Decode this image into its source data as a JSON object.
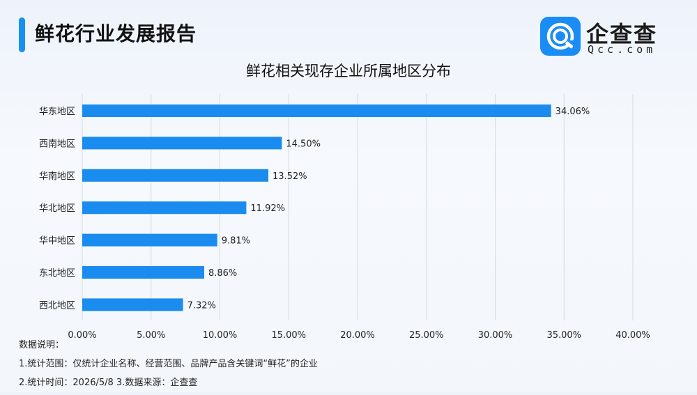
{
  "header": {
    "title": "鲜花行业发展报告"
  },
  "logo": {
    "name_cn": "企查查",
    "name_en": "Qcc.com"
  },
  "chart_data": {
    "type": "bar",
    "orientation": "horizontal",
    "title": "鲜花相关现存企业所属地区分布",
    "categories": [
      "华东地区",
      "西南地区",
      "华南地区",
      "华北地区",
      "华中地区",
      "东北地区",
      "西北地区"
    ],
    "values": [
      34.06,
      14.5,
      13.52,
      11.92,
      9.81,
      8.86,
      7.32
    ],
    "data_labels": [
      "34.06%",
      "14.50%",
      "13.52%",
      "11.92%",
      "9.81%",
      "8.86%",
      "7.32%"
    ],
    "xlim": [
      0,
      40
    ],
    "x_ticks": [
      0,
      5,
      10,
      15,
      20,
      25,
      30,
      35,
      40
    ],
    "x_tick_labels": [
      "0.00%",
      "5.00%",
      "10.00%",
      "15.00%",
      "20.00%",
      "25.00%",
      "30.00%",
      "35.00%",
      "40.00%"
    ],
    "grid": true,
    "bar_color": "#1a8cf0"
  },
  "notes": {
    "heading": "数据说明：",
    "line1": "1.统计范围：仅统计企业名称、经营范围、品牌产品含关键词“鲜花”的企业",
    "line2": "2.统计时间：2026/5/8  3.数据来源：企查查"
  }
}
